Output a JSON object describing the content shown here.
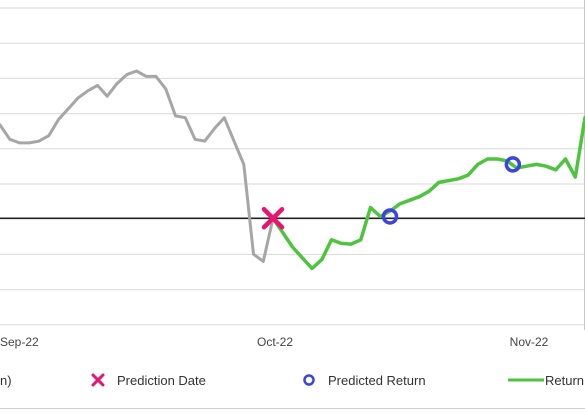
{
  "chart_data": {
    "type": "line",
    "title": "",
    "xlabel": "",
    "ylabel": "",
    "x_tick_labels": [
      "Sep-22",
      "Oct-22",
      "Nov-22"
    ],
    "grid": "horizontal",
    "baseline_y": 0,
    "ylim": [
      -3.0,
      5.8
    ],
    "series": [
      {
        "name": "",
        "color": "#a6a6a6",
        "points": [
          [
            0,
            2.6
          ],
          [
            5,
            2.2
          ],
          [
            10,
            2.1
          ],
          [
            15,
            2.1
          ],
          [
            20,
            2.15
          ],
          [
            25,
            2.3
          ],
          [
            30,
            2.75
          ],
          [
            35,
            3.05
          ],
          [
            40,
            3.35
          ],
          [
            45,
            3.55
          ],
          [
            50,
            3.7
          ],
          [
            55,
            3.4
          ],
          [
            60,
            3.75
          ],
          [
            65,
            4.0
          ],
          [
            70,
            4.1
          ],
          [
            75,
            3.95
          ],
          [
            80,
            3.95
          ],
          [
            85,
            3.6
          ],
          [
            90,
            2.85
          ],
          [
            95,
            2.8
          ],
          [
            100,
            2.2
          ],
          [
            105,
            2.15
          ],
          [
            110,
            2.5
          ],
          [
            115,
            2.8
          ],
          [
            120,
            2.15
          ],
          [
            125,
            1.5
          ],
          [
            130,
            -1.0
          ],
          [
            135,
            -1.2
          ],
          [
            140,
            0
          ]
        ]
      },
      {
        "name": "",
        "color": "#4ec43e",
        "points": [
          [
            140,
            0
          ],
          [
            145,
            -0.4
          ],
          [
            150,
            -0.8
          ],
          [
            155,
            -1.1
          ],
          [
            160,
            -1.4
          ],
          [
            165,
            -1.15
          ],
          [
            170,
            -0.6
          ],
          [
            175,
            -0.7
          ],
          [
            180,
            -0.72
          ],
          [
            185,
            -0.6
          ],
          [
            190,
            0.3
          ],
          [
            195,
            0.05
          ],
          [
            200,
            0.2
          ],
          [
            205,
            0.4
          ],
          [
            210,
            0.5
          ],
          [
            215,
            0.6
          ],
          [
            220,
            0.75
          ],
          [
            225,
            1.0
          ],
          [
            230,
            1.05
          ],
          [
            235,
            1.1
          ],
          [
            240,
            1.2
          ],
          [
            245,
            1.5
          ],
          [
            250,
            1.65
          ],
          [
            255,
            1.65
          ],
          [
            260,
            1.6
          ],
          [
            265,
            1.4
          ],
          [
            270,
            1.45
          ],
          [
            275,
            1.5
          ],
          [
            280,
            1.45
          ],
          [
            285,
            1.35
          ],
          [
            290,
            1.65
          ],
          [
            295,
            1.15
          ],
          [
            300,
            2.8
          ]
        ]
      }
    ],
    "markers": {
      "prediction_date": [
        140,
        0
      ],
      "predicted_returns": [
        [
          200,
          0.05
        ],
        [
          263,
          1.5
        ]
      ]
    },
    "legend_position": "bottom"
  },
  "legend": {
    "partial_label": "n)",
    "prediction_date_label": "Prediction Date",
    "predicted_return_label": "Predicted Return",
    "return_label": "Return"
  },
  "colors": {
    "history": "#a6a6a6",
    "return": "#4ec43e",
    "prediction_marker": "#e8146f",
    "predicted_return_marker": "#3b44e0",
    "baseline": "#222222",
    "grid": "#d9d9d9"
  }
}
